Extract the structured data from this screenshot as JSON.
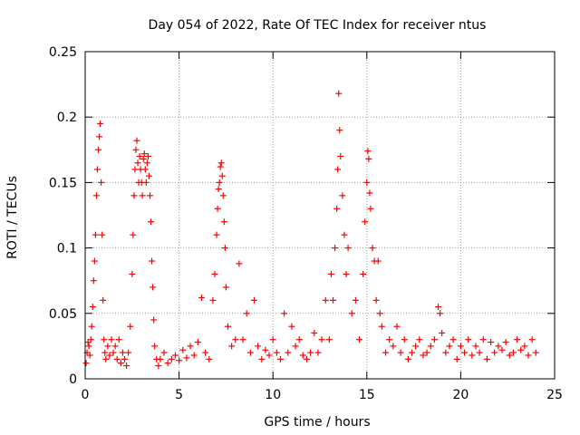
{
  "chart_data": {
    "type": "scatter",
    "title": "Day 054 of 2022, Rate Of TEC Index for receiver ntus",
    "xlabel": "GPS time / hours",
    "ylabel": "ROTI / TECUs",
    "xlim": [
      0,
      25
    ],
    "ylim": [
      0,
      0.25
    ],
    "x_ticks": [
      0,
      5,
      10,
      15,
      20,
      25
    ],
    "x_tick_labels": [
      "0",
      "5",
      "10",
      "15",
      "20",
      "25"
    ],
    "y_ticks": [
      0,
      0.05,
      0.1,
      0.15,
      0.2,
      0.25
    ],
    "y_tick_labels": [
      "0",
      "0.05",
      "0.1",
      "0.15",
      "0.2",
      "0.25"
    ],
    "grid": true,
    "marker": "+",
    "marker_color": "#ff0000",
    "series": [
      {
        "name": "ROTI",
        "x": [
          0.05,
          0.1,
          0.15,
          0.2,
          0.25,
          0.3,
          0.35,
          0.4,
          0.45,
          0.5,
          0.55,
          0.6,
          0.65,
          0.7,
          0.75,
          0.8,
          0.85,
          0.9,
          0.95,
          1.0,
          1.05,
          1.1,
          1.2,
          1.3,
          1.4,
          1.5,
          1.6,
          1.7,
          1.8,
          1.9,
          2.0,
          2.1,
          2.2,
          2.3,
          2.4,
          2.5,
          2.55,
          2.6,
          2.65,
          2.7,
          2.75,
          2.8,
          2.85,
          2.9,
          2.95,
          3.0,
          3.05,
          3.1,
          3.15,
          3.2,
          3.25,
          3.3,
          3.35,
          3.4,
          3.45,
          3.5,
          3.55,
          3.6,
          3.65,
          3.7,
          3.8,
          3.9,
          4.0,
          4.2,
          4.4,
          4.6,
          4.8,
          5.0,
          5.2,
          5.4,
          5.6,
          5.8,
          6.0,
          6.2,
          6.4,
          6.6,
          6.8,
          6.9,
          7.0,
          7.05,
          7.1,
          7.15,
          7.2,
          7.25,
          7.3,
          7.35,
          7.4,
          7.45,
          7.5,
          7.6,
          7.8,
          8.0,
          8.2,
          8.4,
          8.6,
          8.8,
          9.0,
          9.2,
          9.4,
          9.6,
          9.8,
          10.0,
          10.2,
          10.4,
          10.6,
          10.8,
          11.0,
          11.2,
          11.4,
          11.6,
          11.8,
          12.0,
          12.2,
          12.4,
          12.6,
          12.8,
          13.0,
          13.1,
          13.2,
          13.3,
          13.4,
          13.45,
          13.5,
          13.55,
          13.6,
          13.7,
          13.8,
          13.9,
          14.0,
          14.2,
          14.4,
          14.6,
          14.8,
          14.9,
          15.0,
          15.05,
          15.1,
          15.15,
          15.2,
          15.3,
          15.4,
          15.5,
          15.6,
          15.7,
          15.8,
          16.0,
          16.2,
          16.4,
          16.6,
          16.8,
          17.0,
          17.2,
          17.4,
          17.6,
          17.8,
          18.0,
          18.2,
          18.4,
          18.6,
          18.8,
          18.9,
          19.0,
          19.2,
          19.4,
          19.6,
          19.8,
          20.0,
          20.2,
          20.4,
          20.6,
          20.8,
          21.0,
          21.2,
          21.4,
          21.6,
          21.8,
          22.0,
          22.2,
          22.4,
          22.6,
          22.8,
          23.0,
          23.2,
          23.4,
          23.6,
          23.8,
          24.0
        ],
        "y": [
          0.012,
          0.02,
          0.028,
          0.025,
          0.018,
          0.03,
          0.04,
          0.055,
          0.075,
          0.09,
          0.11,
          0.14,
          0.16,
          0.175,
          0.185,
          0.195,
          0.15,
          0.11,
          0.06,
          0.03,
          0.02,
          0.015,
          0.025,
          0.018,
          0.03,
          0.02,
          0.025,
          0.015,
          0.03,
          0.012,
          0.02,
          0.015,
          0.01,
          0.02,
          0.04,
          0.08,
          0.11,
          0.14,
          0.16,
          0.175,
          0.182,
          0.165,
          0.15,
          0.17,
          0.16,
          0.15,
          0.14,
          0.168,
          0.172,
          0.16,
          0.15,
          0.165,
          0.17,
          0.155,
          0.14,
          0.12,
          0.09,
          0.07,
          0.045,
          0.025,
          0.015,
          0.01,
          0.015,
          0.02,
          0.012,
          0.015,
          0.018,
          0.014,
          0.022,
          0.016,
          0.025,
          0.018,
          0.028,
          0.062,
          0.02,
          0.015,
          0.06,
          0.08,
          0.11,
          0.13,
          0.145,
          0.15,
          0.162,
          0.165,
          0.155,
          0.14,
          0.12,
          0.1,
          0.07,
          0.04,
          0.025,
          0.03,
          0.088,
          0.03,
          0.05,
          0.02,
          0.06,
          0.025,
          0.015,
          0.022,
          0.018,
          0.03,
          0.02,
          0.015,
          0.05,
          0.02,
          0.04,
          0.025,
          0.03,
          0.018,
          0.015,
          0.02,
          0.035,
          0.02,
          0.03,
          0.06,
          0.03,
          0.08,
          0.06,
          0.1,
          0.13,
          0.16,
          0.218,
          0.19,
          0.17,
          0.14,
          0.11,
          0.08,
          0.1,
          0.05,
          0.06,
          0.03,
          0.08,
          0.12,
          0.15,
          0.174,
          0.168,
          0.142,
          0.13,
          0.1,
          0.09,
          0.06,
          0.09,
          0.05,
          0.04,
          0.02,
          0.03,
          0.025,
          0.04,
          0.02,
          0.03,
          0.015,
          0.02,
          0.025,
          0.03,
          0.018,
          0.02,
          0.025,
          0.03,
          0.055,
          0.05,
          0.035,
          0.02,
          0.025,
          0.03,
          0.015,
          0.025,
          0.02,
          0.03,
          0.018,
          0.025,
          0.02,
          0.03,
          0.015,
          0.028,
          0.02,
          0.025,
          0.022,
          0.028,
          0.018,
          0.02,
          0.03,
          0.022,
          0.025,
          0.018,
          0.03,
          0.02
        ]
      }
    ]
  }
}
